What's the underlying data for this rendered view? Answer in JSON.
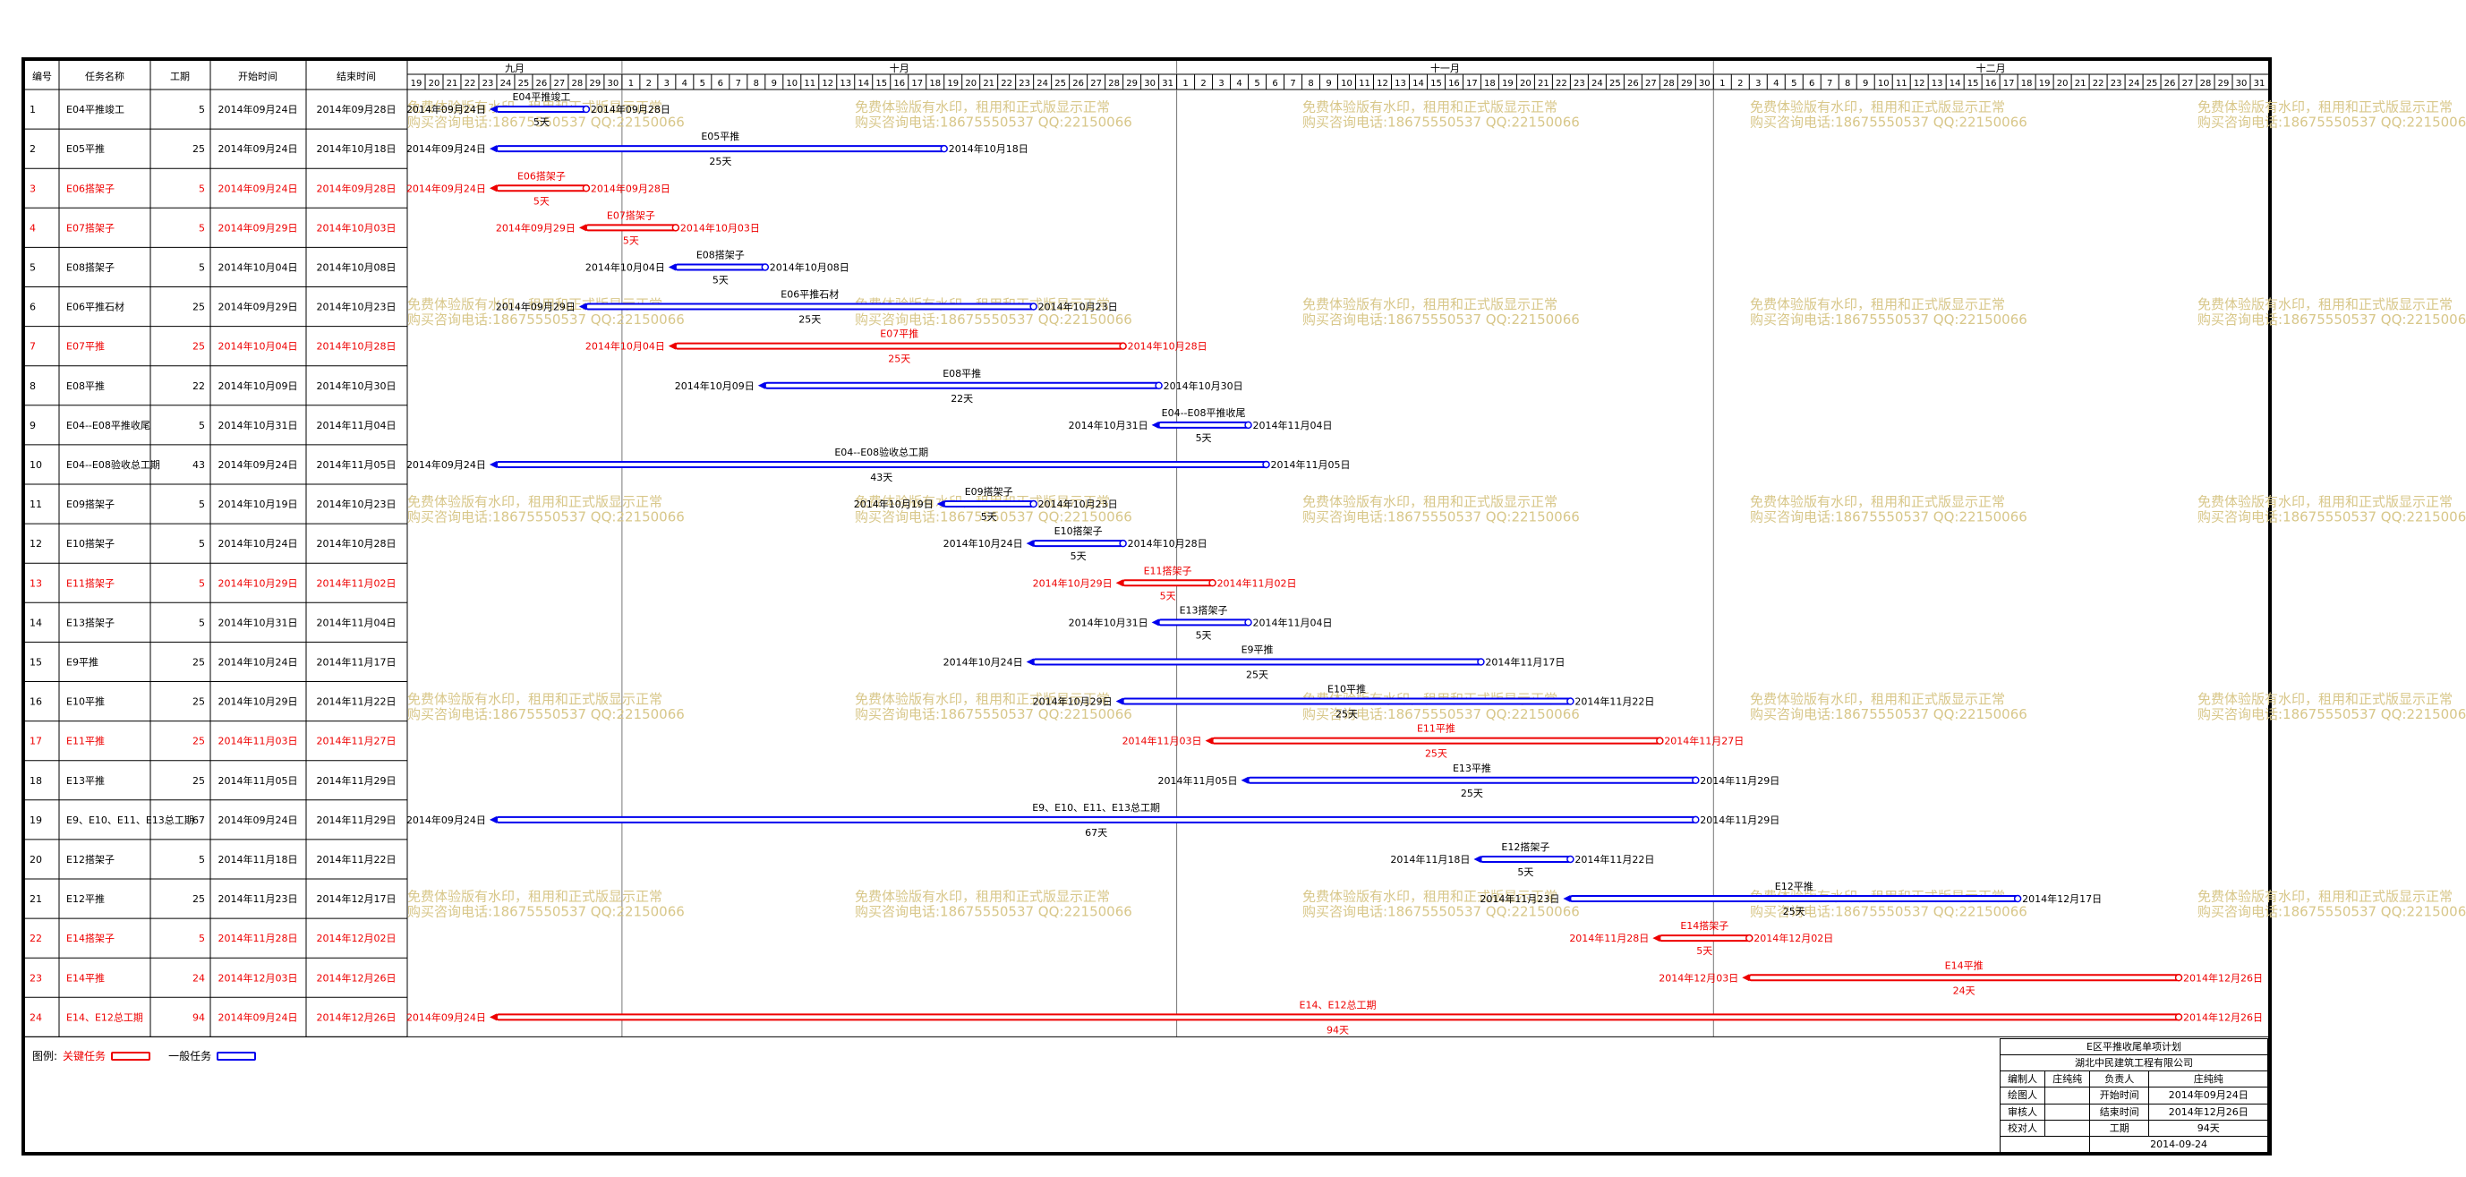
{
  "header": {
    "col_id": "编号",
    "col_name": "任务名称",
    "col_dur": "工期",
    "col_start": "开始时间",
    "col_end": "结束时间"
  },
  "timeline": {
    "start_date": "2014-09-19",
    "months": [
      "九月",
      "十月",
      "十一月",
      "十二月"
    ],
    "days": [
      "19",
      "20",
      "21",
      "22",
      "23",
      "24",
      "25",
      "26",
      "27",
      "28",
      "29",
      "30",
      "1",
      "2",
      "3",
      "4",
      "5",
      "6",
      "7",
      "8",
      "9",
      "10",
      "11",
      "12",
      "13",
      "14",
      "15",
      "16",
      "17",
      "18",
      "19",
      "20",
      "21",
      "22",
      "23",
      "24",
      "25",
      "26",
      "27",
      "28",
      "29",
      "30",
      "31",
      "1",
      "2",
      "3",
      "4",
      "5",
      "6",
      "7",
      "8",
      "9",
      "10",
      "11",
      "12",
      "13",
      "14",
      "15",
      "16",
      "17",
      "18",
      "19",
      "20",
      "21",
      "22",
      "23",
      "24",
      "25",
      "26",
      "27",
      "28",
      "29",
      "30",
      "1",
      "2",
      "3",
      "4",
      "5",
      "6",
      "7",
      "8",
      "9",
      "10",
      "11",
      "12",
      "13",
      "14",
      "15",
      "16",
      "17",
      "18",
      "19",
      "20",
      "21",
      "22",
      "23",
      "24",
      "25",
      "26",
      "27",
      "28",
      "29",
      "30",
      "31"
    ]
  },
  "tasks": [
    {
      "id": "1",
      "name": "E04平推竣工",
      "dur": "5",
      "start": "2014年09月24日",
      "end": "2014年09月28日",
      "critical": false,
      "bar_label": "E04平推竣工",
      "dur_label": "5天"
    },
    {
      "id": "2",
      "name": "E05平推",
      "dur": "25",
      "start": "2014年09月24日",
      "end": "2014年10月18日",
      "critical": false,
      "bar_label": "E05平推",
      "dur_label": "25天"
    },
    {
      "id": "3",
      "name": "E06搭架子",
      "dur": "5",
      "start": "2014年09月24日",
      "end": "2014年09月28日",
      "critical": true,
      "bar_label": "E06搭架子",
      "dur_label": "5天"
    },
    {
      "id": "4",
      "name": "E07搭架子",
      "dur": "5",
      "start": "2014年09月29日",
      "end": "2014年10月03日",
      "critical": true,
      "bar_label": "E07搭架子",
      "dur_label": "5天"
    },
    {
      "id": "5",
      "name": "E08搭架子",
      "dur": "5",
      "start": "2014年10月04日",
      "end": "2014年10月08日",
      "critical": false,
      "bar_label": "E08搭架子",
      "dur_label": "5天"
    },
    {
      "id": "6",
      "name": "E06平推石材",
      "dur": "25",
      "start": "2014年09月29日",
      "end": "2014年10月23日",
      "critical": false,
      "bar_label": "E06平推石材",
      "dur_label": "25天"
    },
    {
      "id": "7",
      "name": "E07平推",
      "dur": "25",
      "start": "2014年10月04日",
      "end": "2014年10月28日",
      "critical": true,
      "bar_label": "E07平推",
      "dur_label": "25天"
    },
    {
      "id": "8",
      "name": "E08平推",
      "dur": "22",
      "start": "2014年10月09日",
      "end": "2014年10月30日",
      "critical": false,
      "bar_label": "E08平推",
      "dur_label": "22天"
    },
    {
      "id": "9",
      "name": "E04--E08平推收尾",
      "dur": "5",
      "start": "2014年10月31日",
      "end": "2014年11月04日",
      "critical": false,
      "bar_label": "E04--E08平推收尾",
      "dur_label": "5天"
    },
    {
      "id": "10",
      "name": "E04--E08验收总工期",
      "dur": "43",
      "start": "2014年09月24日",
      "end": "2014年11月05日",
      "critical": false,
      "bar_label": "E04--E08验收总工期",
      "dur_label": "43天"
    },
    {
      "id": "11",
      "name": "E09搭架子",
      "dur": "5",
      "start": "2014年10月19日",
      "end": "2014年10月23日",
      "critical": false,
      "bar_label": "E09搭架子",
      "dur_label": "5天"
    },
    {
      "id": "12",
      "name": "E10搭架子",
      "dur": "5",
      "start": "2014年10月24日",
      "end": "2014年10月28日",
      "critical": false,
      "bar_label": "E10搭架子",
      "dur_label": "5天"
    },
    {
      "id": "13",
      "name": "E11搭架子",
      "dur": "5",
      "start": "2014年10月29日",
      "end": "2014年11月02日",
      "critical": true,
      "bar_label": "E11搭架子",
      "dur_label": "5天"
    },
    {
      "id": "14",
      "name": "E13搭架子",
      "dur": "5",
      "start": "2014年10月31日",
      "end": "2014年11月04日",
      "critical": false,
      "bar_label": "E13搭架子",
      "dur_label": "5天"
    },
    {
      "id": "15",
      "name": "E9平推",
      "dur": "25",
      "start": "2014年10月24日",
      "end": "2014年11月17日",
      "critical": false,
      "bar_label": "E9平推",
      "dur_label": "25天"
    },
    {
      "id": "16",
      "name": "E10平推",
      "dur": "25",
      "start": "2014年10月29日",
      "end": "2014年11月22日",
      "critical": false,
      "bar_label": "E10平推",
      "dur_label": "25天"
    },
    {
      "id": "17",
      "name": "E11平推",
      "dur": "25",
      "start": "2014年11月03日",
      "end": "2014年11月27日",
      "critical": true,
      "bar_label": "E11平推",
      "dur_label": "25天"
    },
    {
      "id": "18",
      "name": "E13平推",
      "dur": "25",
      "start": "2014年11月05日",
      "end": "2014年11月29日",
      "critical": false,
      "bar_label": "E13平推",
      "dur_label": "25天"
    },
    {
      "id": "19",
      "name": "E9、E10、E11、E13总工期",
      "dur": "67",
      "start": "2014年09月24日",
      "end": "2014年11月29日",
      "critical": false,
      "bar_label": "E9、E10、E11、E13总工期",
      "dur_label": "67天"
    },
    {
      "id": "20",
      "name": "E12搭架子",
      "dur": "5",
      "start": "2014年11月18日",
      "end": "2014年11月22日",
      "critical": false,
      "bar_label": "E12搭架子",
      "dur_label": "5天"
    },
    {
      "id": "21",
      "name": "E12平推",
      "dur": "25",
      "start": "2014年11月23日",
      "end": "2014年12月17日",
      "critical": false,
      "bar_label": "E12平推",
      "dur_label": "25天"
    },
    {
      "id": "22",
      "name": "E14搭架子",
      "dur": "5",
      "start": "2014年11月28日",
      "end": "2014年12月02日",
      "critical": true,
      "bar_label": "E14搭架子",
      "dur_label": "5天"
    },
    {
      "id": "23",
      "name": "E14平推",
      "dur": "24",
      "start": "2014年12月03日",
      "end": "2014年12月26日",
      "critical": true,
      "bar_label": "E14平推",
      "dur_label": "24天"
    },
    {
      "id": "24",
      "name": "E14、E12总工期",
      "dur": "94",
      "start": "2014年09月24日",
      "end": "2014年12月26日",
      "critical": true,
      "bar_label": "E14、E12总工期",
      "dur_label": "94天"
    }
  ],
  "watermark": {
    "line1": "免费体验版有水印，租用和正式版显示正常",
    "line2": "购买咨询电话:18675550537 QQ:22150066"
  },
  "legend": {
    "prefix": "图例:",
    "critical": "关键任务",
    "normal": "一般任务"
  },
  "title_block": {
    "title": "E区平推收尾单项计划",
    "company": "湖北中民建筑工程有限公司",
    "author_label": "编制人",
    "author": "庄纯纯",
    "owner_label": "负责人",
    "owner": "庄纯纯",
    "drawer_label": "绘图人",
    "start_label": "开始时间",
    "start": "2014年09月24日",
    "reviewer_label": "审核人",
    "end_label": "结束时间",
    "end": "2014年12月26日",
    "checker_label": "校对人",
    "dur_label": "工期",
    "dur": "94天",
    "date": "2014-09-24"
  },
  "colors": {
    "critical": "#ee0000",
    "normal": "#0000ee",
    "watermark": "#d8c78a",
    "grid": "#b0b0b0"
  }
}
